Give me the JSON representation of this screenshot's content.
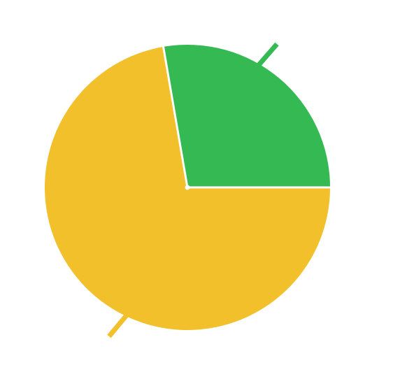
{
  "chart_data": {
    "type": "pie",
    "start_angle_deg": 0,
    "direction": "counterclockwise",
    "slices": [
      {
        "value": 27.7,
        "color": "#35B952"
      },
      {
        "value": 72.3,
        "color": "#F1C02A"
      }
    ],
    "guide_line_color": "#35B952",
    "guide_line_color_alt": "#F1C02A",
    "separator_color": "#ffffff"
  }
}
